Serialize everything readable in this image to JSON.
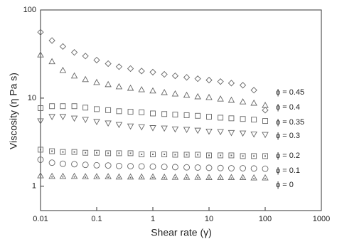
{
  "chart_data": {
    "type": "scatter",
    "x_label": "Shear rate (γ)",
    "y_label": "Viscosity (η Pa s)",
    "xlim": [
      0.01,
      1000
    ],
    "ylim": [
      0.53,
      100
    ],
    "xticks": [
      0.01,
      0.1,
      1,
      10,
      100,
      1000
    ],
    "yticks": [
      1,
      10,
      100
    ],
    "xscale": "log",
    "yscale": "log",
    "x": [
      0.01,
      0.016,
      0.025,
      0.04,
      0.063,
      0.1,
      0.16,
      0.25,
      0.4,
      0.63,
      1,
      1.6,
      2.5,
      4,
      6.3,
      10,
      16,
      25,
      40,
      63,
      100
    ],
    "series": [
      {
        "name": "ϕ = 0.45",
        "marker": "diamond",
        "color": "#666666",
        "values": [
          56,
          45,
          38.5,
          33,
          30,
          27,
          24.6,
          22.7,
          21.6,
          20.3,
          19.7,
          18.6,
          17.9,
          17.2,
          16.6,
          16,
          15.4,
          14.8,
          14,
          12.3,
          7.3
        ]
      },
      {
        "name": "ϕ = 0.4",
        "marker": "triangle",
        "color": "#666666",
        "values": [
          31,
          26,
          20.7,
          17.9,
          16.3,
          15.1,
          14.3,
          13.5,
          13,
          12.5,
          12.1,
          11.6,
          11.2,
          10.8,
          10.4,
          10.2,
          9.8,
          9.5,
          9.1,
          8.8,
          8.3
        ]
      },
      {
        "name": "ϕ = 0.35",
        "marker": "square",
        "color": "#666666",
        "values": [
          7.7,
          8.1,
          8.1,
          8.1,
          7.8,
          7.5,
          7.3,
          7.1,
          7.0,
          6.9,
          6.7,
          6.6,
          6.5,
          6.4,
          6.3,
          6.15,
          6.0,
          5.9,
          5.8,
          5.7,
          5.5
        ]
      },
      {
        "name": "ϕ = 0.3",
        "marker": "triangle-down",
        "color": "#666666",
        "values": [
          5.5,
          6.15,
          6.15,
          5.9,
          5.7,
          5.4,
          5.2,
          5.0,
          4.8,
          4.7,
          4.6,
          4.55,
          4.45,
          4.4,
          4.3,
          4.2,
          4.15,
          4.05,
          4.0,
          3.9,
          3.85
        ]
      },
      {
        "name": "ϕ = 0.2",
        "marker": "square-dot",
        "color": "#666666",
        "values": [
          2.6,
          2.5,
          2.45,
          2.45,
          2.4,
          2.4,
          2.37,
          2.37,
          2.37,
          2.3,
          2.3,
          2.3,
          2.28,
          2.28,
          2.28,
          2.24,
          2.24,
          2.24,
          2.2,
          2.2,
          2.2
        ]
      },
      {
        "name": "ϕ = 0.1",
        "marker": "circle",
        "color": "#666666",
        "values": [
          2.0,
          1.85,
          1.8,
          1.78,
          1.75,
          1.73,
          1.72,
          1.7,
          1.69,
          1.68,
          1.67,
          1.66,
          1.65,
          1.64,
          1.63,
          1.62,
          1.61,
          1.6,
          1.6,
          1.59,
          1.58
        ]
      },
      {
        "name": "ϕ = 0",
        "marker": "triangle-dot",
        "color": "#666666",
        "values": [
          1.32,
          1.3,
          1.3,
          1.3,
          1.29,
          1.29,
          1.29,
          1.28,
          1.28,
          1.28,
          1.28,
          1.27,
          1.27,
          1.27,
          1.27,
          1.26,
          1.26,
          1.26,
          1.26,
          1.25,
          1.25
        ]
      }
    ]
  }
}
